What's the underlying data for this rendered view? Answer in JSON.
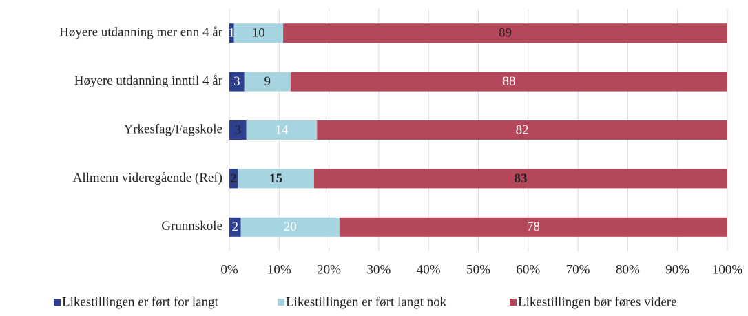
{
  "chart_data": {
    "type": "stacked-bar-horizontal",
    "categories": [
      "Høyere utdanning mer enn 4 år",
      "Høyere utdanning inntil 4 år",
      "Yrkesfag/Fagskole",
      "Allmenn videregående (Ref)",
      "Grunnskole"
    ],
    "series": [
      {
        "name": "Likestillingen er ført for langt",
        "color": "#2e3f8f",
        "values": [
          0.9,
          3.0,
          3.4,
          1.7,
          2.3
        ],
        "value_labels": [
          "1",
          "3",
          "3",
          "2",
          "2"
        ]
      },
      {
        "name": "Likestillingen er ført langt nok",
        "color": "#a6d4e0",
        "values": [
          9.9,
          9.3,
          14.2,
          15.3,
          19.8
        ],
        "value_labels": [
          "10",
          "9",
          "14",
          "15",
          "20"
        ]
      },
      {
        "name": "Likestillingen bør føres videre",
        "color": "#b5475b",
        "values": [
          89.2,
          87.7,
          82.4,
          83.0,
          77.9
        ],
        "value_labels": [
          "89",
          "88",
          "82",
          "83",
          "78"
        ]
      }
    ],
    "xlim": [
      0,
      100
    ],
    "xticks": [
      {
        "value": 0,
        "label": "0%"
      },
      {
        "value": 10,
        "label": "10%"
      },
      {
        "value": 20,
        "label": "20%"
      },
      {
        "value": 30,
        "label": "30%"
      },
      {
        "value": 40,
        "label": "40%"
      },
      {
        "value": 50,
        "label": "50%"
      },
      {
        "value": 60,
        "label": "60%"
      },
      {
        "value": 70,
        "label": "70%"
      },
      {
        "value": 80,
        "label": "80%"
      },
      {
        "value": 90,
        "label": "90%"
      },
      {
        "value": 100,
        "label": "100%"
      }
    ],
    "grid": true,
    "legend": "bottom"
  }
}
